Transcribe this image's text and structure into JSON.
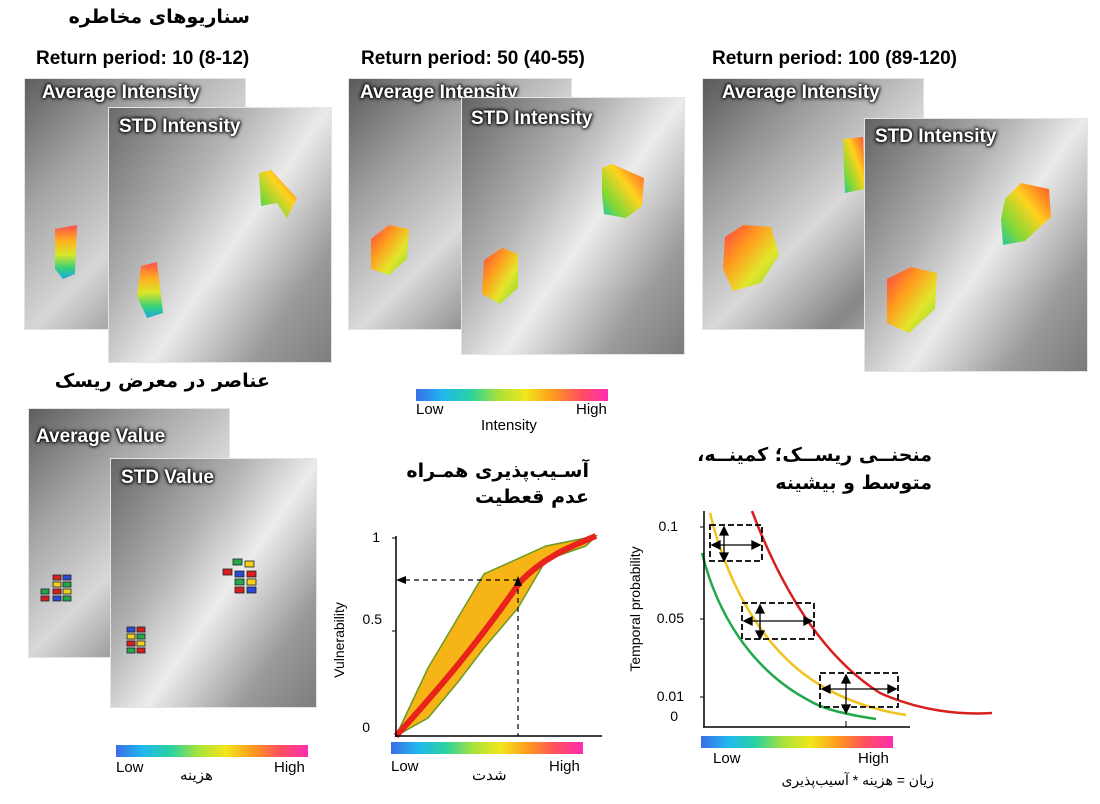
{
  "headings": {
    "hazard": "سناریوهای مخاطره",
    "exposure": "عناصر در معرض ریسک",
    "vulnerability": "آسـیب‌پذیری همـراه عدم قعطیت",
    "risk_curve_line1": "منحنــی ریســک؛ کمینــه،",
    "risk_curve_line2": "متوسط و بیشینه"
  },
  "scenarios": [
    {
      "title": "Return period: 10 (8-12)",
      "label_avg": "Average Intensity",
      "label_std": "STD Intensity"
    },
    {
      "title": "Return period: 50 (40-55)",
      "label_avg": "Average Intensity",
      "label_std": "STD Intensity"
    },
    {
      "title": "Return period: 100 (89-120)",
      "label_avg": "Average Intensity",
      "label_std": "STD Intensity"
    }
  ],
  "exposure": {
    "label_avg": "Average Value",
    "label_std": "STD Value"
  },
  "colorbars": {
    "intensity": {
      "low": "Low",
      "high": "High",
      "title": "Intensity"
    },
    "cost": {
      "low": "Low",
      "high": "High",
      "title": "هزینه"
    },
    "severity": {
      "low": "Low",
      "high": "High",
      "title": "شدت"
    },
    "loss": {
      "low": "Low",
      "high": "High",
      "title": "زیان = هزینه * آسیب‌پذیری"
    }
  },
  "vulnerability_chart": {
    "ylabel": "Vulnerability",
    "ytick_1": "1",
    "ytick_05": "0.5",
    "ytick_0": "0"
  },
  "risk_chart": {
    "ylabel": "Temporal probability",
    "ytick_01": "0.1",
    "ytick_005": "0.05",
    "ytick_001": "0.01",
    "ytick_0": "0"
  },
  "colors": {
    "min_curve": "#22a84a",
    "mean_curve": "#f2c21c",
    "max_curve": "#d81e1e",
    "band": "#f6b416",
    "mean_vuln": "#e8231c"
  }
}
